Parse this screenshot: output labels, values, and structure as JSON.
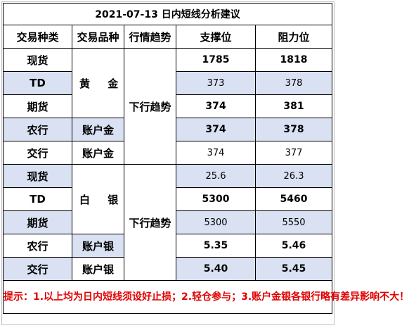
{
  "title": "2021-07-13 日内短线分析建议",
  "headers": [
    "交易种类",
    "交易品种",
    "行情趋势",
    "支撑位",
    "阻力位"
  ],
  "gold": {
    "metal": "黄 金",
    "trend": "下行趋势",
    "rows": [
      {
        "type": "现货",
        "product": "",
        "support": "1785",
        "resistance": "1818"
      },
      {
        "type": "TD",
        "product": "",
        "support": "373",
        "resistance": "378"
      },
      {
        "type": "期货",
        "product": "",
        "support": "374",
        "resistance": "381"
      },
      {
        "type": "农行",
        "product": "账户金",
        "support": "374",
        "resistance": "378"
      },
      {
        "type": "交行",
        "product": "账户金",
        "support": "374",
        "resistance": "377"
      }
    ]
  },
  "silver": {
    "metal": "白 银",
    "trend": "下行趋势",
    "rows": [
      {
        "type": "现货",
        "product": "",
        "support": "25.6",
        "resistance": "26.3"
      },
      {
        "type": "TD",
        "product": "",
        "support": "5300",
        "resistance": "5460"
      },
      {
        "type": "期货",
        "product": "",
        "support": "5300",
        "resistance": "5550"
      },
      {
        "type": "农行",
        "product": "账户银",
        "support": "5.35",
        "resistance": "5.46"
      },
      {
        "type": "交行",
        "product": "账户银",
        "support": "5.40",
        "resistance": "5.45"
      }
    ]
  },
  "note": "提示：1.以上均为日内短线须设好止损；2.轻仓参与；3.账户金银各银行略有差异影响不大！"
}
